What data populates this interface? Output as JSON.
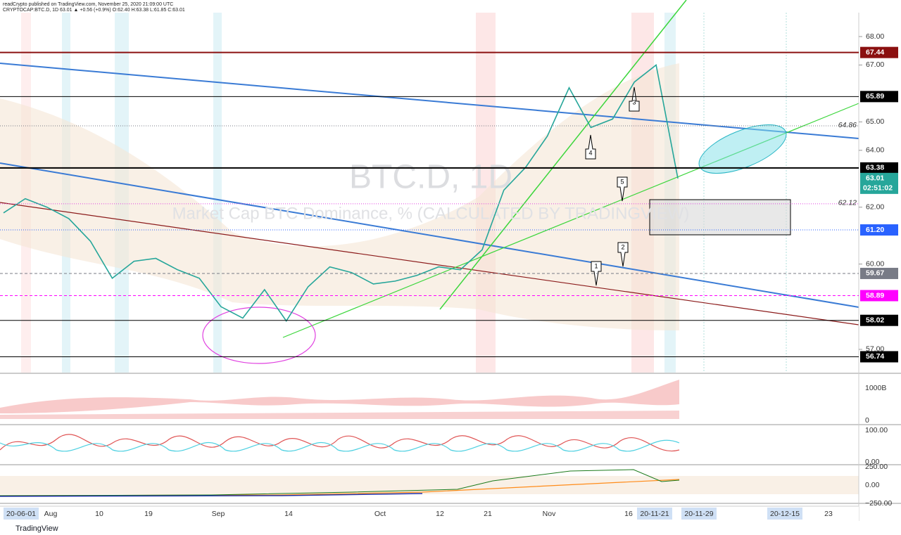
{
  "header": {
    "publisher": "readCrypto published on TradingView.com, November 25, 2020 21:09:00 UTC",
    "symbol_line": "CRYPTOCAP:BTC.D, 1D 63.01 ▲ +0.56 (+0.9%) O:62.40 H:63.38 L:61.85 C:63.01"
  },
  "watermark": {
    "symbol": "BTC.D, 1D",
    "description": "Market Cap BTC Dominance, % (CALCULATED BY TRADINGVIEW)"
  },
  "price_ticks": [
    {
      "value": 68,
      "label": "68.00"
    },
    {
      "value": 67,
      "label": "67.00"
    },
    {
      "value": 65,
      "label": "65.00"
    },
    {
      "value": 64,
      "label": "64.00"
    },
    {
      "value": 62,
      "label": "62.00"
    },
    {
      "value": 60,
      "label": "60.00"
    },
    {
      "value": 57,
      "label": "57.00"
    }
  ],
  "levels": [
    {
      "value": 67.44,
      "color": "#8b1010",
      "width": 2,
      "dash": "solid"
    },
    {
      "value": 65.89,
      "color": "#000000",
      "width": 1,
      "dash": "solid"
    },
    {
      "value": 63.38,
      "color": "#000000",
      "width": 2,
      "dash": "solid"
    },
    {
      "value": 61.2,
      "label": "61.20",
      "color": "#2962ff",
      "width": 1,
      "dash": "dotted"
    },
    {
      "value": 59.67,
      "color": "#787b86",
      "width": 1,
      "dash": "dashed"
    },
    {
      "value": 58.89,
      "color": "#ff00ff",
      "width": 1,
      "dash": "dashed"
    },
    {
      "value": 58.02,
      "color": "#000000",
      "width": 1,
      "dash": "solid"
    },
    {
      "value": 56.74,
      "color": "#000000",
      "width": 1,
      "dash": "solid"
    }
  ],
  "chart_labels": [
    {
      "value": 64.86,
      "color": "#787b86"
    },
    {
      "value": 62.12,
      "color": "#e040e0"
    }
  ],
  "last_price": {
    "value": 63.01,
    "countdown": "02:51:02",
    "color": "#26a69a"
  },
  "price_line": {
    "color": "#26a69a",
    "values": [
      61.8,
      62.3,
      62.0,
      61.6,
      60.8,
      59.5,
      60.1,
      60.2,
      59.8,
      59.5,
      58.5,
      58.1,
      59.1,
      58.0,
      59.2,
      59.9,
      59.7,
      59.3,
      59.4,
      59.6,
      59.9,
      59.8,
      60.5,
      62.6,
      63.4,
      64.5,
      66.2,
      64.8,
      65.1,
      66.4,
      67.0,
      63.01
    ]
  },
  "wave_labels": [
    "1",
    "2",
    "3",
    "4",
    "5"
  ],
  "time_axis": [
    "20-06-01",
    "Aug",
    "10",
    "19",
    "Sep",
    "14",
    "Oct",
    "12",
    "21",
    "Nov",
    "16",
    "20-11-21",
    "20-11-29",
    "20-12-15",
    "23"
  ],
  "indicator_axes": [
    "1000B",
    "0",
    "100.00",
    "0.00",
    "250.00",
    "0.00",
    "−250.00"
  ],
  "footer": "TradingView"
}
